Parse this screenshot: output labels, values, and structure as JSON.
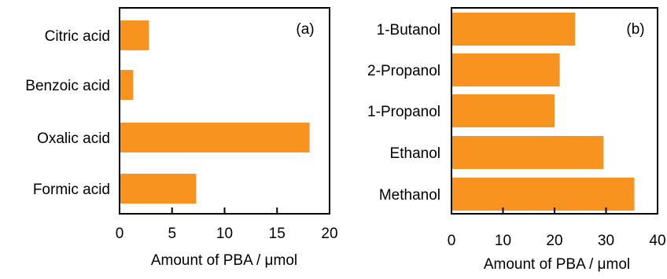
{
  "bar_color": "#f7931e",
  "axis_color": "#000000",
  "chart_data": [
    {
      "type": "bar",
      "orientation": "horizontal",
      "panel_label": "(a)",
      "categories": [
        "Citric acid",
        "Benzoic acid",
        "Oxalic acid",
        "Formic acid"
      ],
      "values": [
        2.8,
        1.3,
        18.1,
        7.3
      ],
      "xlabel": "Amount of PBA / μmol",
      "xlim": [
        0,
        20
      ],
      "xticks": [
        0,
        5,
        10,
        15,
        20
      ],
      "grid": false,
      "legend": "none"
    },
    {
      "type": "bar",
      "orientation": "horizontal",
      "panel_label": "(b)",
      "categories": [
        "1-Butanol",
        "2-Propanol",
        "1-Propanol",
        "Ethanol",
        "Methanol"
      ],
      "values": [
        24.0,
        21.0,
        20.0,
        29.5,
        35.5
      ],
      "xlabel": "Amount of PBA / μmol",
      "xlim": [
        0,
        40
      ],
      "xticks": [
        0,
        10,
        20,
        30,
        40
      ],
      "grid": false,
      "legend": "none"
    }
  ]
}
